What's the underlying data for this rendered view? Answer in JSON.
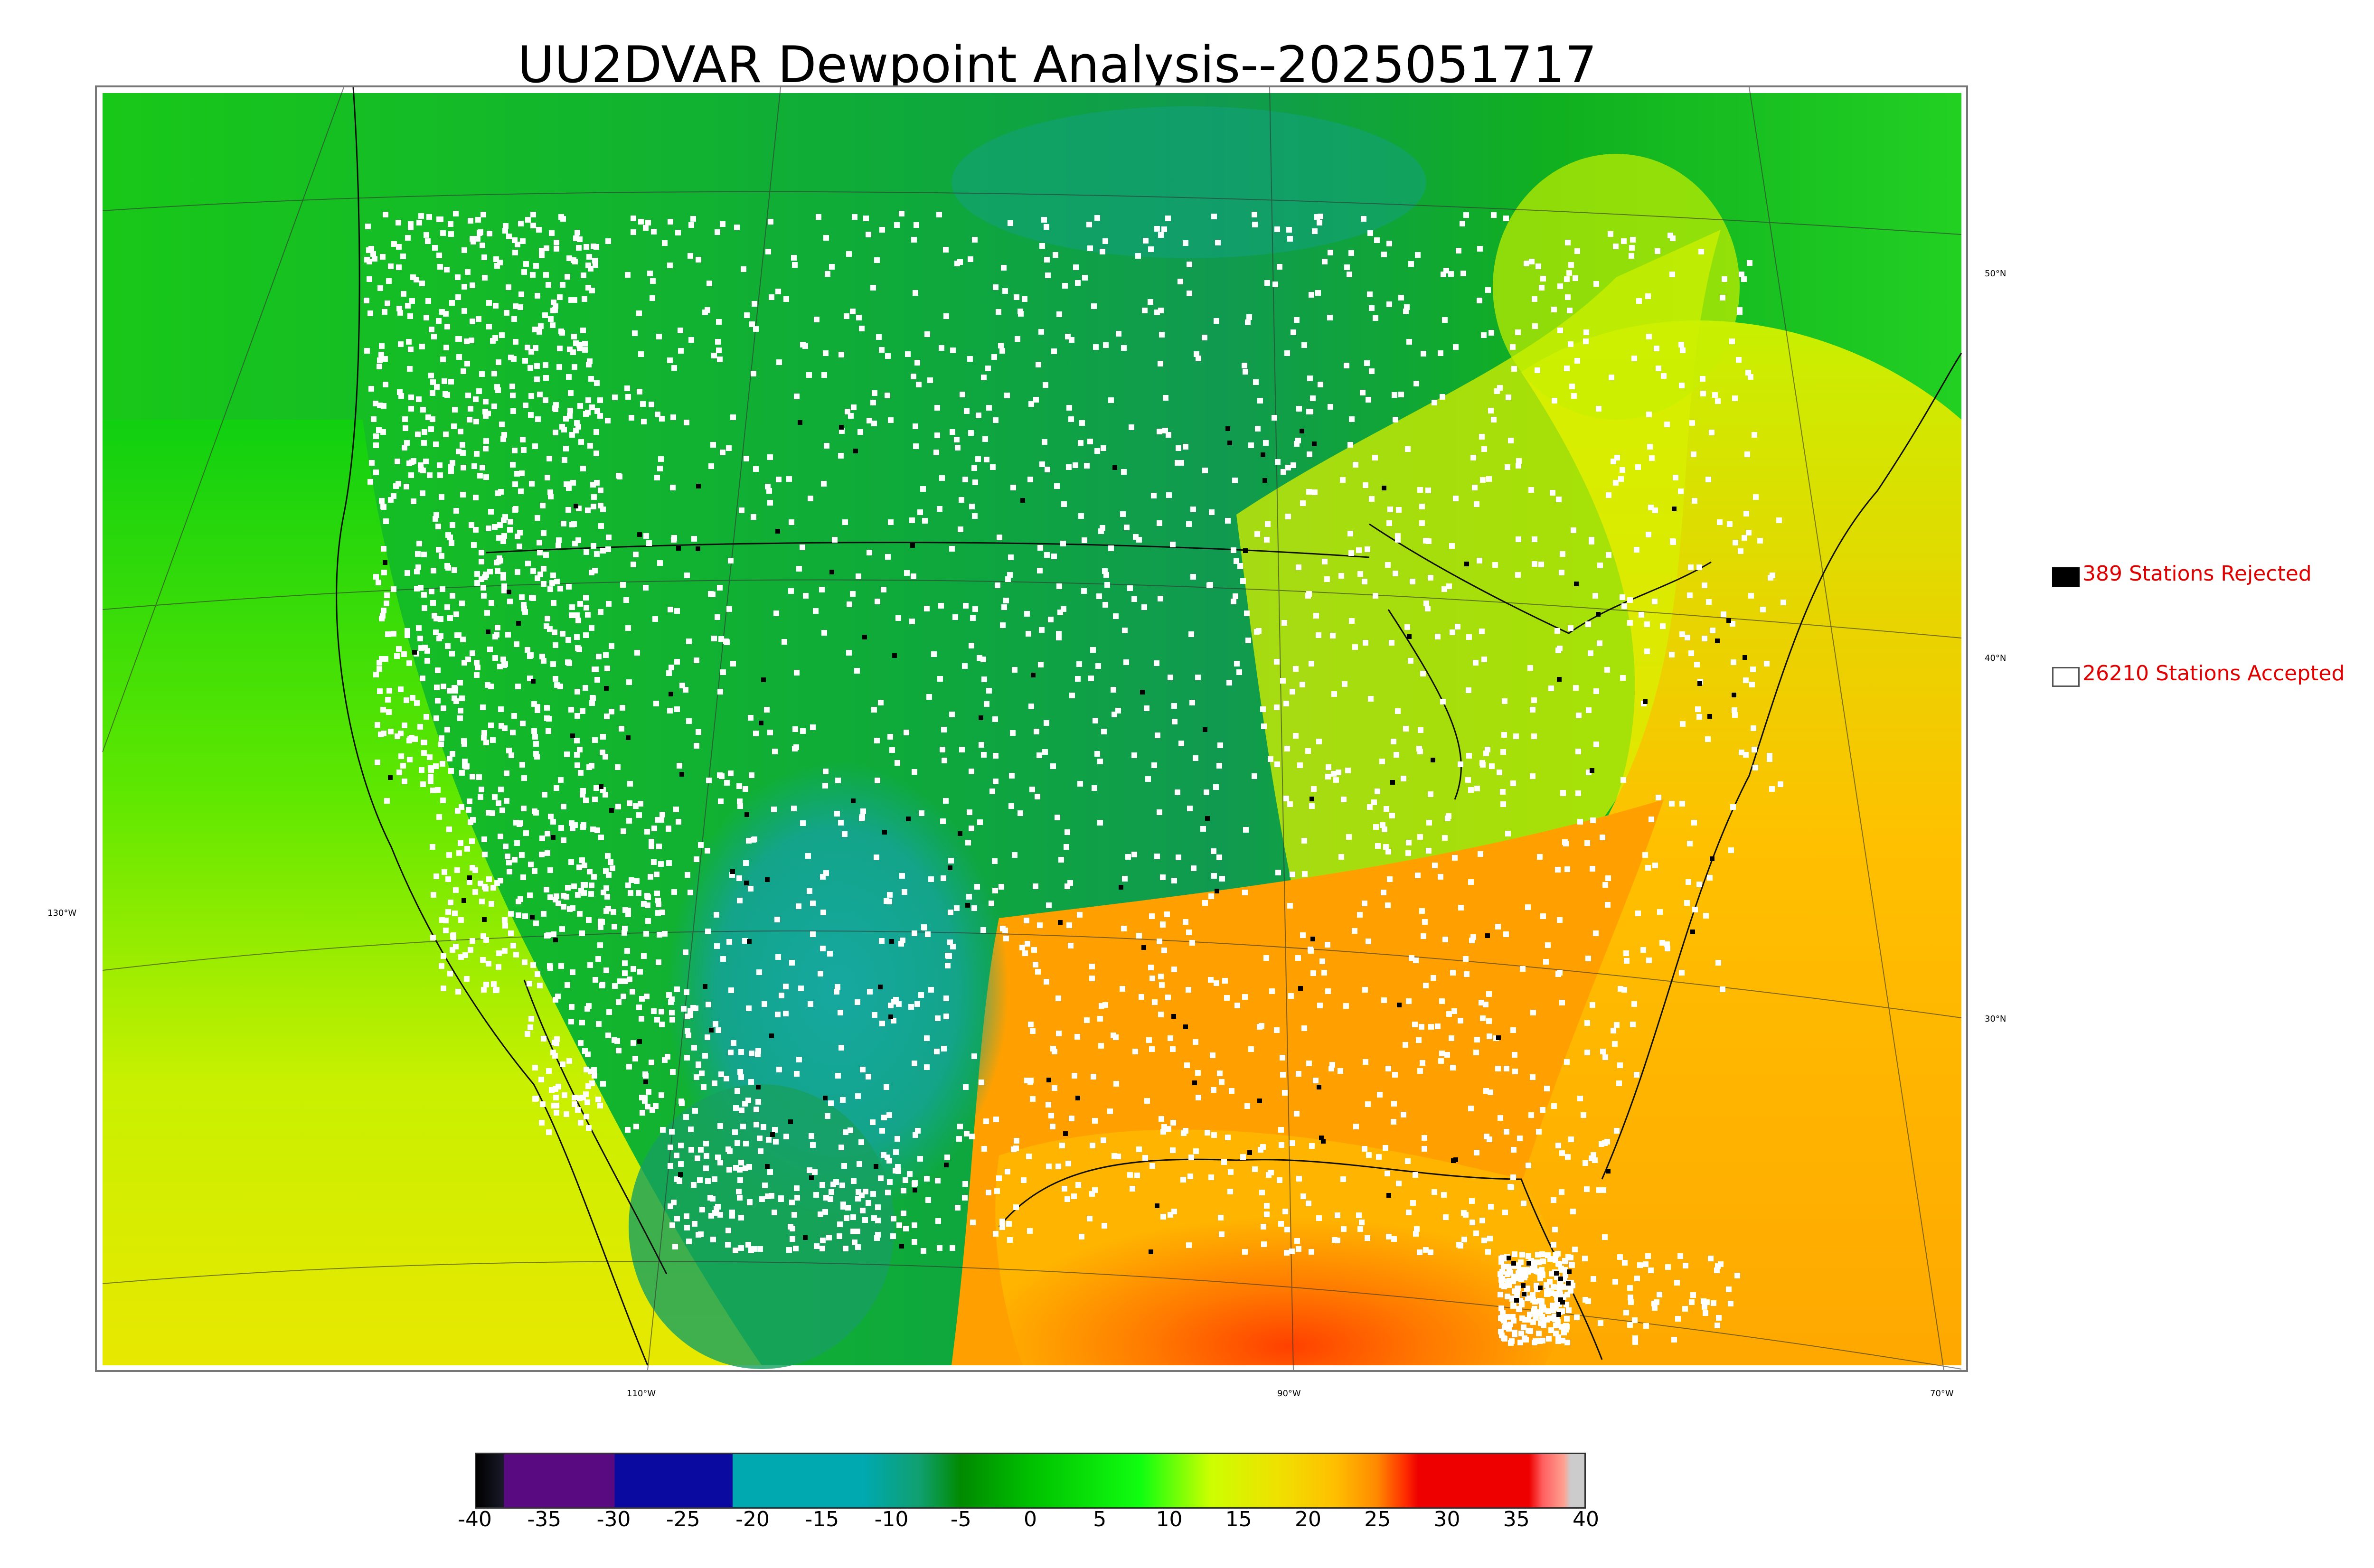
{
  "title": "UU2DVAR Dewpoint Analysis--2025051717",
  "map": {
    "lat_labels": [
      "50°N",
      "40°N",
      "30°N"
    ],
    "lon_labels_bottom": [
      "110°W",
      "90°W",
      "70°W"
    ],
    "lon_label_left": "130°W",
    "station_counts": {
      "rejected": 389,
      "accepted": 26210
    },
    "station_marker_colors": {
      "accepted": "#ffffff",
      "rejected": "#000000"
    }
  },
  "legend": {
    "rejected_label": "389 Stations Rejected",
    "accepted_label": "26210 Stations Accepted",
    "rejected_color": "#000000",
    "accepted_color": "#ffffff",
    "text_color": "#e00000"
  },
  "colorbar": {
    "min": -40,
    "max": 40,
    "ticks": [
      "-40",
      "-35",
      "-30",
      "-25",
      "-20",
      "-15",
      "-10",
      "-5",
      "0",
      "5",
      "10",
      "15",
      "20",
      "25",
      "30",
      "35",
      "40"
    ],
    "stops": [
      {
        "value": -40,
        "color": "#000000"
      },
      {
        "value": -38,
        "color": "#1a1a2a"
      },
      {
        "value": -38,
        "color": "#5a0a80"
      },
      {
        "value": -30,
        "color": "#5a0a80"
      },
      {
        "value": -30,
        "color": "#0a0aa0"
      },
      {
        "value": -21.5,
        "color": "#0a0aa0"
      },
      {
        "value": -21.5,
        "color": "#00a8b0"
      },
      {
        "value": -12,
        "color": "#00a8b0"
      },
      {
        "value": -8,
        "color": "#10a070"
      },
      {
        "value": -5,
        "color": "#008a00"
      },
      {
        "value": 0,
        "color": "#00c000"
      },
      {
        "value": 8,
        "color": "#10ff10"
      },
      {
        "value": 13,
        "color": "#ccff00"
      },
      {
        "value": 18,
        "color": "#f0e000"
      },
      {
        "value": 22,
        "color": "#ffbf00"
      },
      {
        "value": 25,
        "color": "#ff8a00"
      },
      {
        "value": 27,
        "color": "#ff3000"
      },
      {
        "value": 28,
        "color": "#ee0000"
      },
      {
        "value": 36,
        "color": "#ee0000"
      },
      {
        "value": 37,
        "color": "#ff6060"
      },
      {
        "value": 38.5,
        "color": "#ffa090"
      },
      {
        "value": 39,
        "color": "#cccccc"
      },
      {
        "value": 40,
        "color": "#cccccc"
      }
    ]
  }
}
